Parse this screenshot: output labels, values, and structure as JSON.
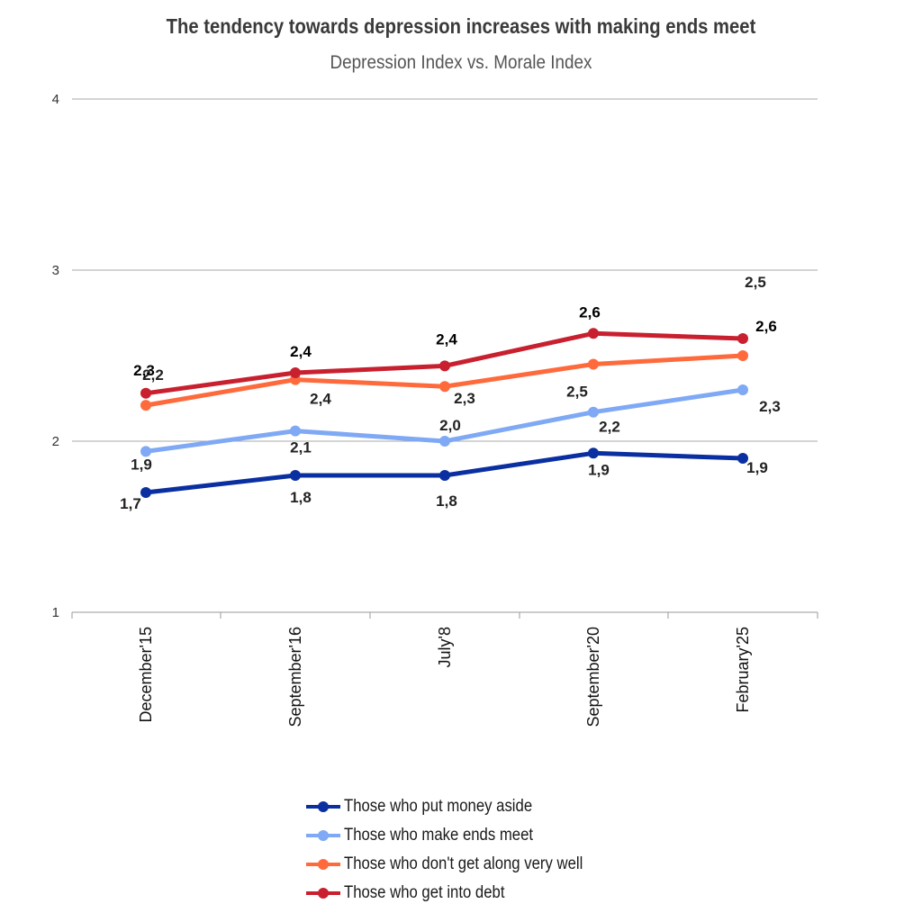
{
  "chart_data": {
    "type": "line",
    "title": "The tendency towards depression increases with making ends meet",
    "subtitle": "Depression Index vs. Morale Index",
    "xlabel": "",
    "ylabel": "",
    "categories": [
      "December'15",
      "September'16",
      "July'8",
      "September'20",
      "February'25"
    ],
    "ylim": [
      1,
      4
    ],
    "yticks": [
      "1",
      "2",
      "3",
      "4"
    ],
    "grid": true,
    "legend_position": "bottom",
    "series": [
      {
        "name": "Those who put money aside",
        "color": "#0a2fa0",
        "values": [
          1.7,
          1.8,
          1.8,
          1.93,
          1.9
        ],
        "labels": [
          "1,7",
          "1,8",
          "1,8",
          "1,9",
          "1,9"
        ]
      },
      {
        "name": "Those who make ends meet",
        "color": "#7fa9f5",
        "values": [
          1.94,
          2.06,
          2.0,
          2.17,
          2.3
        ],
        "labels": [
          "1,9",
          "2,1",
          "2,0",
          "2,2",
          "2,3"
        ]
      },
      {
        "name": "Those who don't get along very well",
        "color": "#ff6a3d",
        "values": [
          2.21,
          2.36,
          2.32,
          2.45,
          2.5
        ],
        "labels": [
          "2,2",
          "2,4",
          "2,3",
          "2,5",
          "2,5"
        ]
      },
      {
        "name": "Those who get into debt",
        "color": "#c8202f",
        "values": [
          2.28,
          2.4,
          2.44,
          2.63,
          2.6
        ],
        "labels": [
          "2,3",
          "2,4",
          "2,4",
          "2,6",
          "2,6"
        ]
      }
    ]
  }
}
